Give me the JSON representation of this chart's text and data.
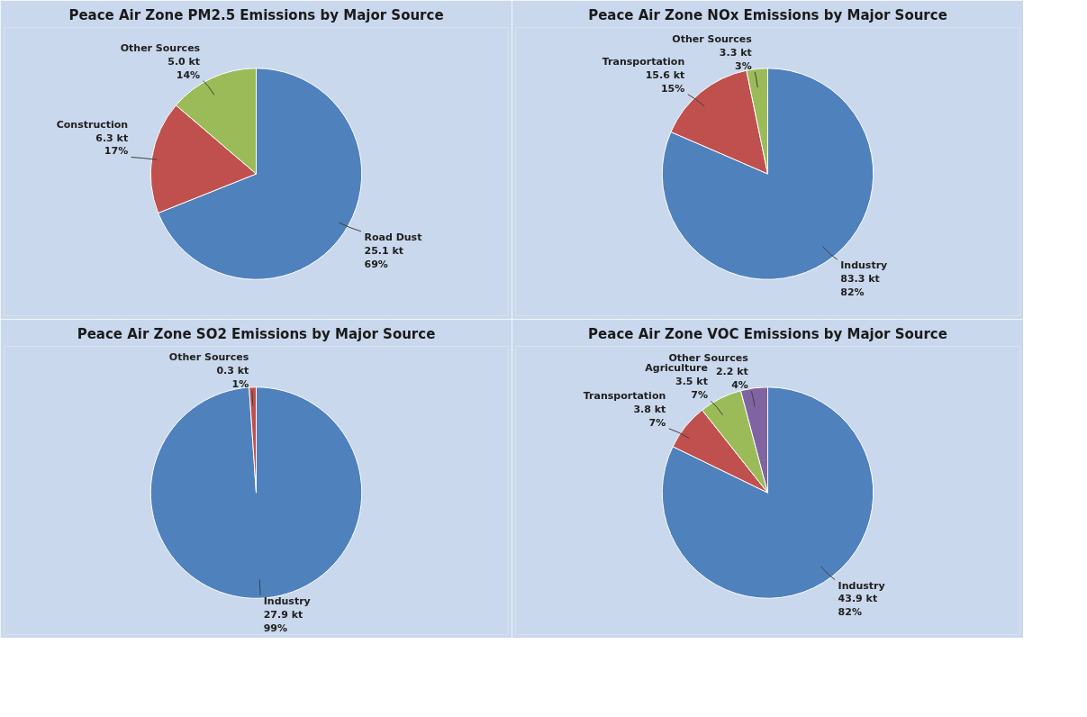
{
  "chart_data": [
    {
      "type": "pie",
      "title": "Peace Air Zone PM2.5 Emissions by Major Source",
      "categories": [
        "Road Dust",
        "Construction",
        "Other Sources"
      ],
      "values": [
        25.1,
        6.3,
        5.0
      ],
      "colors": [
        "#4f81bd",
        "#c0504d",
        "#9bbb59"
      ],
      "value_labels": [
        "25.1 kt\n69%",
        "6.3 kt\n17%",
        "5.0 kt\n14%"
      ],
      "legend": false
    },
    {
      "type": "pie",
      "title": "Peace Air Zone NOx Emissions by Major Source",
      "categories": [
        "Industry",
        "Transportation",
        "Other Sources"
      ],
      "values": [
        83.3,
        15.6,
        3.3
      ],
      "colors": [
        "#4f81bd",
        "#c0504d",
        "#9bbb59"
      ],
      "value_labels": [
        "83.3 kt\n82%",
        "15.6 kt\n15%",
        "3.3 kt\n3%"
      ],
      "legend": false
    },
    {
      "type": "pie",
      "title": "Peace Air Zone SO2 Emissions by Major Source",
      "categories": [
        "Industry",
        "Other Sources"
      ],
      "values": [
        27.9,
        0.3
      ],
      "colors": [
        "#4f81bd",
        "#c0504d"
      ],
      "value_labels": [
        "27.9 kt\n99%",
        "0.3 kt\n1%"
      ],
      "legend": false
    },
    {
      "type": "pie",
      "title": "Peace Air Zone VOC Emissions by Major Source",
      "categories": [
        "Industry",
        "Transportation",
        "Agriculture",
        "Other Sources"
      ],
      "values": [
        43.9,
        3.8,
        3.5,
        2.2
      ],
      "colors": [
        "#4f81bd",
        "#c0504d",
        "#9bbb59",
        "#8064a2"
      ],
      "value_labels": [
        "43.9 kt\n82%",
        "3.8 kt\n7%",
        "3.5 kt\n7%",
        "2.2 kt\n4%"
      ],
      "legend": false
    }
  ]
}
